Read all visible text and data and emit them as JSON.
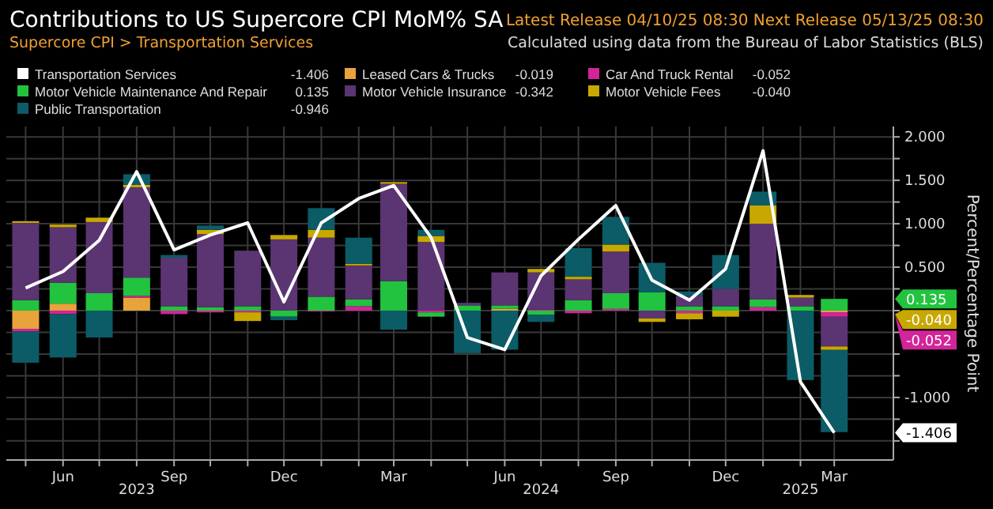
{
  "chart_data": {
    "type": "bar",
    "title": "Contributions to US Supercore CPI MoM% SA",
    "subtitle": "Supercore CPI > Transportation Services",
    "annotations": [
      "Latest Release 04/10/25 08:30   Next Release 05/13/25 08:30",
      "Calculated using data from the Bureau of Labor Statistics (BLS)",
      "-1.406",
      "-0.019",
      "-0.052",
      "0.135",
      "-0.342",
      "-0.040",
      "-0.946",
      "0.135",
      "-0.052",
      "-0.040",
      "-1.406"
    ],
    "x2lim": [
      "2023-04-15",
      "2025-04-19"
    ],
    "x2ticks": [
      {
        "value": "2023-08",
        "label": "2023"
      },
      {
        "value": "2024-07",
        "label": "2024"
      },
      {
        "value": "2025-02",
        "label": "2025"
      }
    ],
    "ylabel": "Percent/Percentage Point",
    "x": [
      "2023-05",
      "2023-06",
      "2023-07",
      "2023-08",
      "2023-09",
      "2023-10",
      "2023-11",
      "2023-12",
      "2024-01",
      "2024-02",
      "2024-03",
      "2024-04",
      "2024-05",
      "2024-06",
      "2024-07",
      "2024-08",
      "2024-09",
      "2024-10",
      "2024-11",
      "2024-12",
      "2025-01",
      "2025-02",
      "2025-03"
    ],
    "xlim": [
      "2023-04-15",
      "2025-04-19"
    ],
    "xticks": [
      {
        "value": "2023-05",
        "label": null
      },
      {
        "value": "2023-06",
        "label": "Jun"
      },
      {
        "value": "2023-07",
        "label": null
      },
      {
        "value": "2023-08",
        "label": null
      },
      {
        "value": "2023-09",
        "label": "Sep"
      },
      {
        "value": "2023-10",
        "label": null
      },
      {
        "value": "2023-11",
        "label": null
      },
      {
        "value": "2023-12",
        "label": "Dec"
      },
      {
        "value": "2024-01",
        "label": null
      },
      {
        "value": "2024-02",
        "label": null
      },
      {
        "value": "2024-03",
        "label": "Mar"
      },
      {
        "value": "2024-04",
        "label": null
      },
      {
        "value": "2024-05",
        "label": null
      },
      {
        "value": "2024-06",
        "label": "Jun"
      },
      {
        "value": "2024-07",
        "label": null
      },
      {
        "value": "2024-08",
        "label": null
      },
      {
        "value": "2024-09",
        "label": "Sep"
      },
      {
        "value": "2024-10",
        "label": null
      },
      {
        "value": "2024-11",
        "label": null
      },
      {
        "value": "2024-12",
        "label": "Dec"
      },
      {
        "value": "2025-01",
        "label": null
      },
      {
        "value": "2025-02",
        "label": null
      },
      {
        "value": "2025-03",
        "label": "Mar"
      }
    ],
    "ylim": [
      -1.72,
      2.12
    ],
    "yticks": [
      {
        "value": -1.5,
        "label": null
      },
      {
        "value": -1.25,
        "label": null
      },
      {
        "value": -1,
        "label": "-1.000"
      },
      {
        "value": -0.75,
        "label": null
      },
      {
        "value": -0.5,
        "label": null
      },
      {
        "value": -0.25,
        "label": null
      },
      {
        "value": 0,
        "label": null
      },
      {
        "value": 0.25,
        "label": null
      },
      {
        "value": 0.5,
        "label": "0.500"
      },
      {
        "value": 0.75,
        "label": null
      },
      {
        "value": 1,
        "label": "1.000"
      },
      {
        "value": 1.25,
        "label": null
      },
      {
        "value": 1.5,
        "label": "1.500"
      },
      {
        "value": 1.75,
        "label": null
      },
      {
        "value": 2,
        "label": "2.000"
      }
    ],
    "grid": true,
    "stacked": true,
    "legend": "top left",
    "series": [
      {
        "name": "Transportation Services",
        "type": "line",
        "color": "#ffffff",
        "values": [
          0.26,
          0.45,
          0.81,
          1.6,
          0.7,
          0.87,
          1.01,
          0.1,
          1.01,
          1.29,
          1.44,
          0.84,
          -0.31,
          -0.45,
          0.4,
          0.82,
          1.21,
          0.35,
          0.12,
          0.48,
          1.84,
          -0.82,
          -1.406
        ]
      },
      {
        "name": "Leased Cars & Trucks",
        "color": "#e8a33a",
        "values": [
          -0.21,
          0.08,
          0,
          0.15,
          0,
          0,
          0,
          0,
          0,
          0,
          0,
          0,
          0,
          0.02,
          0,
          0,
          0,
          0,
          0,
          0,
          0,
          0,
          -0.019
        ]
      },
      {
        "name": "Car And Truck Rental",
        "color": "#d4249a",
        "values": [
          -0.03,
          -0.04,
          0,
          0.02,
          -0.04,
          -0.02,
          -0.02,
          0,
          -0.01,
          0.05,
          0,
          -0.02,
          0,
          0,
          0.01,
          -0.03,
          0.02,
          0,
          -0.03,
          0,
          0.04,
          0,
          -0.052
        ]
      },
      {
        "name": "Motor Vehicle Maintenance And Repair",
        "color": "#22c33f",
        "values": [
          0.12,
          0.24,
          0.2,
          0.21,
          0.05,
          0.04,
          0.05,
          -0.07,
          0.16,
          0.08,
          0.34,
          -0.05,
          0.06,
          0.04,
          -0.05,
          0.12,
          0.18,
          0.21,
          0.05,
          0.05,
          0.09,
          0.05,
          0.135
        ]
      },
      {
        "name": "Motor Vehicle Insurance",
        "color": "#5b3472",
        "values": [
          0.89,
          0.64,
          0.82,
          1.04,
          0.56,
          0.84,
          0.64,
          0.82,
          0.68,
          0.39,
          1.12,
          0.79,
          0.03,
          0.38,
          0.43,
          0.24,
          0.48,
          -0.09,
          0.12,
          0.2,
          0.87,
          0.1,
          -0.342
        ]
      },
      {
        "name": "Motor Vehicle Fees",
        "color": "#c8a800",
        "values": [
          0.02,
          0.03,
          0.05,
          0.03,
          0,
          0.05,
          -0.1,
          0.05,
          0.09,
          0.02,
          0.02,
          0.07,
          0,
          0,
          0.04,
          0.03,
          0.08,
          -0.04,
          -0.07,
          -0.07,
          0.21,
          0.03,
          -0.04
        ]
      },
      {
        "name": "Public Transportation",
        "color": "#0b5c66",
        "values": [
          -0.36,
          -0.5,
          -0.31,
          0.12,
          0.03,
          0.05,
          0,
          -0.04,
          0.25,
          0.3,
          -0.22,
          0.07,
          -0.49,
          -0.45,
          -0.08,
          0.33,
          0.32,
          0.34,
          0.05,
          0.39,
          0.16,
          -0.8,
          -0.946
        ]
      }
    ]
  }
}
